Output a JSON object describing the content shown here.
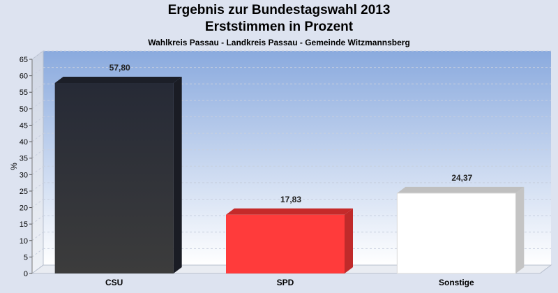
{
  "chart_data": {
    "type": "bar",
    "title": "Ergebnis zur Bundestagswahl 2013",
    "subtitle": "Erststimmen in Prozent",
    "subtitle2": "Wahlkreis Passau - Landkreis Passau - Gemeinde Witzmannsberg",
    "ylabel": "%",
    "ylim": [
      0,
      65
    ],
    "yticks": [
      0,
      5,
      10,
      15,
      20,
      25,
      30,
      35,
      40,
      45,
      50,
      55,
      60,
      65
    ],
    "categories": [
      "CSU",
      "SPD",
      "Sonstige"
    ],
    "values": [
      57.8,
      17.83,
      24.37
    ],
    "value_labels": [
      "57,80",
      "17,83",
      "24,37"
    ],
    "colors": [
      "#2a2e3a",
      "#ff3b3b",
      "#ffffff"
    ],
    "grid": true
  }
}
